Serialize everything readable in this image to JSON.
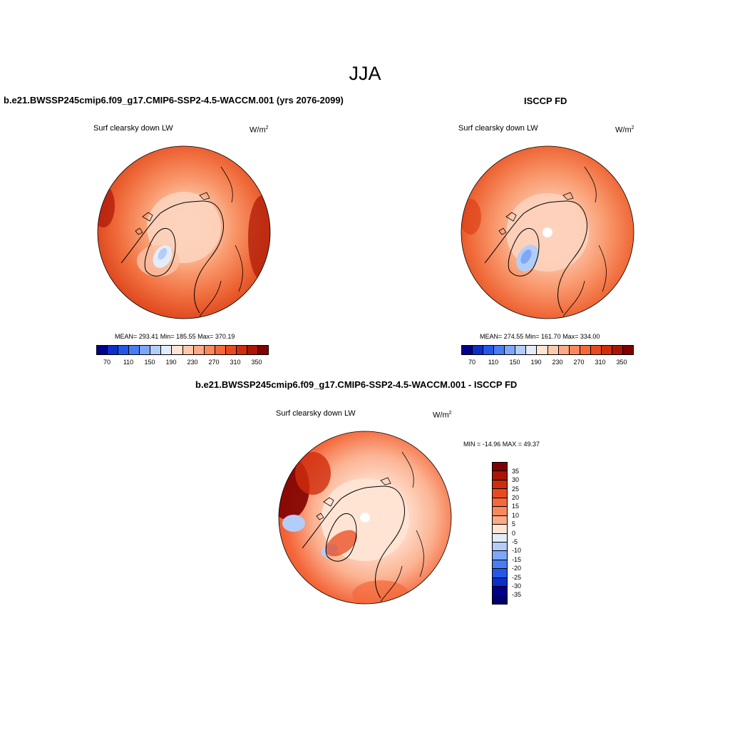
{
  "figure": {
    "season": "JJA",
    "units_main": "W/m",
    "units_sup": "2"
  },
  "panels": {
    "model": {
      "title": "b.e21.BWSSP245cmip6.f09_g17.CMIP6-SSP2-4.5-WACCM.001 (yrs 2076-2099)",
      "variable": "Surf clearsky down LW",
      "stats": "MEAN= 293.41  Min= 185.55  Max= 370.19"
    },
    "obs": {
      "title": "ISCCP FD",
      "variable": "Surf clearsky down LW",
      "stats": "MEAN= 274.55  Min= 161.70  Max= 334.00"
    },
    "diff": {
      "title": "b.e21.BWSSP245cmip6.f09_g17.CMIP6-SSP2-4.5-WACCM.001 - ISCCP FD",
      "variable": "Surf clearsky down LW",
      "stats": "MIN = -14.96 MAX =  49.37"
    }
  },
  "chart_data": [
    {
      "type": "heatmap",
      "title": "b.e21.BWSSP245cmip6.f09_g17.CMIP6-SSP2-4.5-WACCM.001 (yrs 2076-2099)",
      "subtitle": "Surf clearsky down LW",
      "units": "W/m2",
      "projection": "north polar stereographic",
      "mean": 293.41,
      "min": 185.55,
      "max": 370.19,
      "colorbar_labels": [
        "70",
        "110",
        "150",
        "190",
        "230",
        "270",
        "310",
        "350"
      ],
      "colorbar_colors": [
        "#00008b",
        "#0b2fc9",
        "#2357e8",
        "#4a7df4",
        "#7ea7f8",
        "#b3cdf9",
        "#e3ecfa",
        "#ffe4d3",
        "#fdcab0",
        "#fcaa86",
        "#f9895d",
        "#f4683b",
        "#e84a20",
        "#cf2d0e",
        "#ac1405",
        "#7f0000"
      ]
    },
    {
      "type": "heatmap",
      "title": "ISCCP FD",
      "subtitle": "Surf clearsky down LW",
      "units": "W/m2",
      "projection": "north polar stereographic",
      "mean": 274.55,
      "min": 161.7,
      "max": 334.0,
      "colorbar_labels": [
        "70",
        "110",
        "150",
        "190",
        "230",
        "270",
        "310",
        "350"
      ],
      "colorbar_colors": [
        "#00008b",
        "#0b2fc9",
        "#2357e8",
        "#4a7df4",
        "#7ea7f8",
        "#b3cdf9",
        "#e3ecfa",
        "#ffe4d3",
        "#fdcab0",
        "#fcaa86",
        "#f9895d",
        "#f4683b",
        "#e84a20",
        "#cf2d0e",
        "#ac1405",
        "#7f0000"
      ]
    },
    {
      "type": "heatmap",
      "title": "b.e21.BWSSP245cmip6.f09_g17.CMIP6-SSP2-4.5-WACCM.001 - ISCCP FD",
      "subtitle": "Surf clearsky down LW",
      "units": "W/m2",
      "projection": "north polar stereographic",
      "min": -14.96,
      "max": 49.37,
      "colorbar_labels": [
        "35",
        "30",
        "25",
        "20",
        "15",
        "10",
        "5",
        "0",
        "-5",
        "-10",
        "-15",
        "-20",
        "-25",
        "-30",
        "-35"
      ],
      "colorbar_colors": [
        "#7f0000",
        "#ac1405",
        "#cf2d0e",
        "#e84a20",
        "#f4683b",
        "#f9895d",
        "#fcaa86",
        "#ffe4d3",
        "#e3ecfa",
        "#b3cdf9",
        "#7ea7f8",
        "#4a7df4",
        "#2357e8",
        "#0b2fc9",
        "#00008b",
        "#00006a"
      ]
    }
  ]
}
